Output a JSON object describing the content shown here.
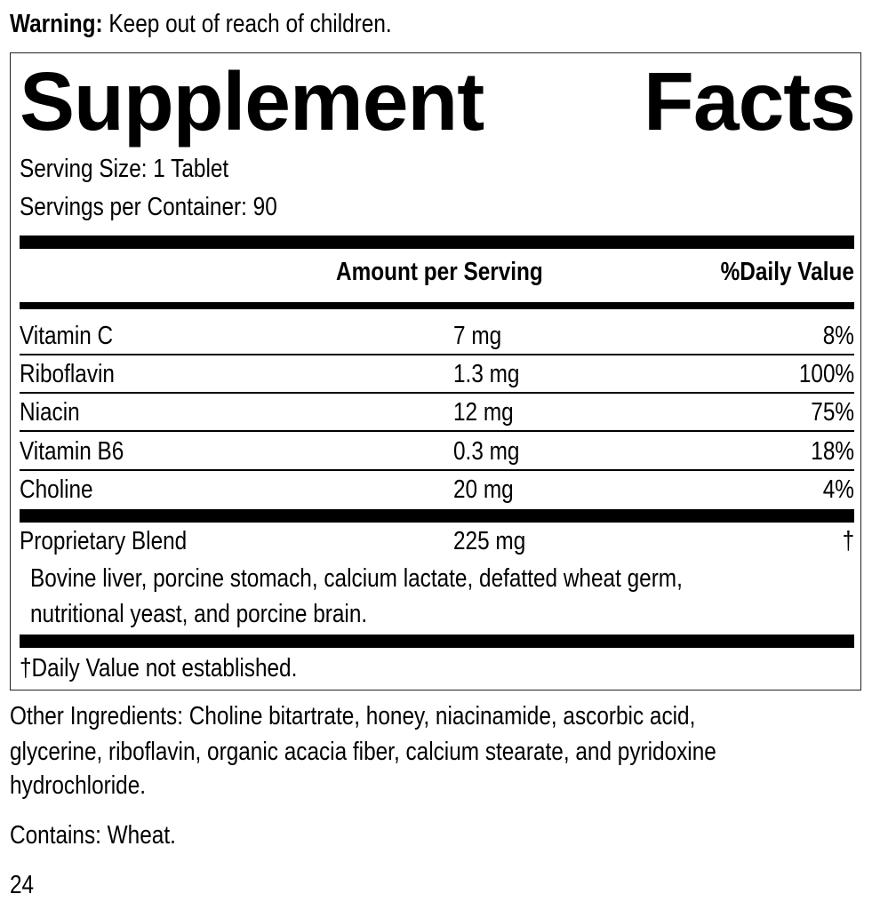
{
  "warning": {
    "label": "Warning:",
    "text": "Keep out of reach of children."
  },
  "title": {
    "word1": "Supplement",
    "word2": "Facts"
  },
  "serving_size": "Serving Size: 1 Tablet",
  "servings_per_container": "Servings per Container: 90",
  "header": {
    "amount": "Amount per Serving",
    "dv": "%Daily Value"
  },
  "rows": [
    {
      "name": "Vitamin C",
      "amount": "7 mg",
      "dv": "8%"
    },
    {
      "name": "Riboflavin",
      "amount": "1.3 mg",
      "dv": "100%"
    },
    {
      "name": "Niacin",
      "amount": "12 mg",
      "dv": "75%"
    },
    {
      "name": "Vitamin B6",
      "amount": "0.3 mg",
      "dv": "18%"
    },
    {
      "name": "Choline",
      "amount": "20 mg",
      "dv": "4%"
    }
  ],
  "blend": {
    "name": "Proprietary Blend",
    "amount": "225 mg",
    "dv": "†",
    "line1": "Bovine liver, porcine stomach, calcium lactate, defatted wheat germ,",
    "line2": "nutritional yeast, and porcine brain."
  },
  "footnote": "†Daily Value not established.",
  "other_ingredients": [
    "Other Ingredients: Choline bitartrate, honey, niacinamide, ascorbic acid,",
    "glycerine, riboflavin, organic acacia fiber, calcium stearate, and pyridoxine",
    "hydrochloride."
  ],
  "contains": "Contains: Wheat.",
  "page_number": "24"
}
